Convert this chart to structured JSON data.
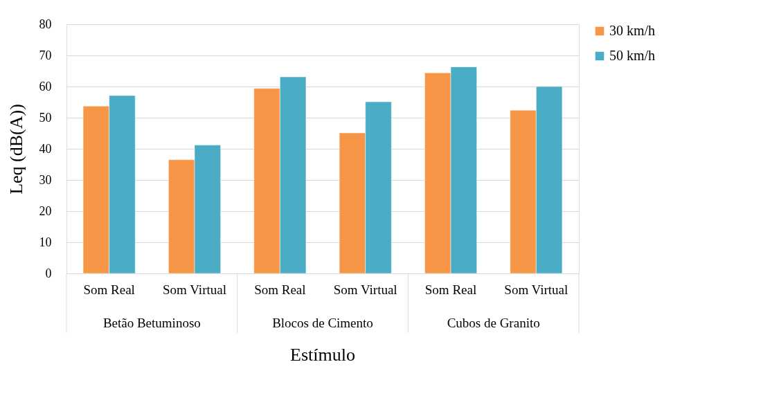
{
  "chart_data": {
    "type": "bar",
    "xlabel": "Estímulo",
    "ylabel": "Leq (dB(A))",
    "categories": [
      "Som Real",
      "Som Virtual",
      "Som Real",
      "Som Virtual",
      "Som Real",
      "Som Virtual"
    ],
    "annotations": [
      "Betão Betuminoso",
      "Blocos de Cimento",
      "Cubos de Granito"
    ],
    "series": [
      {
        "name": "30 km/h",
        "color": "#f79646",
        "values": [
          53.7,
          36.5,
          59.4,
          45.1,
          64.4,
          52.4
        ]
      },
      {
        "name": "50 km/h",
        "color": "#4bacc6",
        "values": [
          57.1,
          41.2,
          63.1,
          55.1,
          66.3,
          60.0
        ]
      }
    ],
    "ylim": [
      0,
      80
    ],
    "yticks": [
      0,
      10,
      20,
      30,
      40,
      50,
      60,
      70,
      80
    ],
    "grid": "y",
    "legend": "right"
  }
}
